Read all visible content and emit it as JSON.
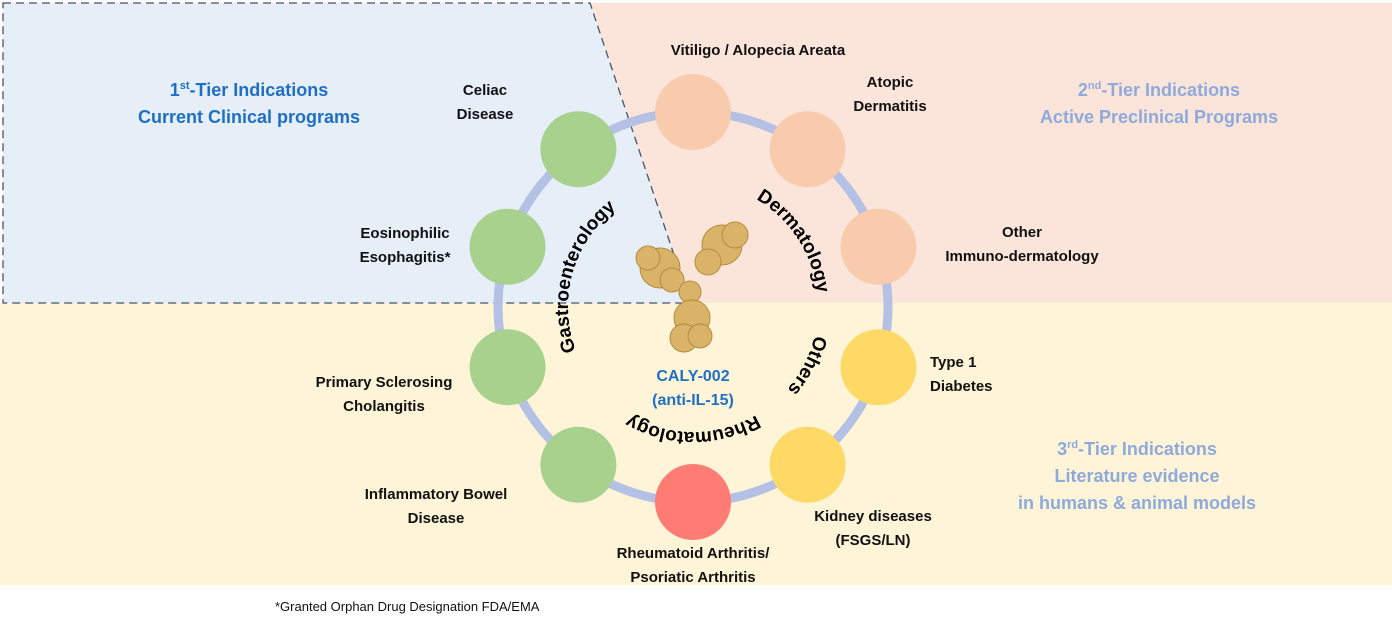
{
  "colors": {
    "tier1_bg": "#e6eef8",
    "tier2_bg": "#fbe5da",
    "tier3_bg": "#fef4d8",
    "tier1_text": "#1f6fc5",
    "tier_light_text": "#8eaadb",
    "ring": "#b4c0e4",
    "gastro": "#a9d18e",
    "derm": "#f8cbad",
    "others": "#ffd966",
    "rheum": "#ff7c75"
  },
  "tiers": {
    "tier1": {
      "num": "1",
      "sup": "st",
      "title": "-Tier Indications",
      "subtitle": "Current Clinical programs"
    },
    "tier2": {
      "num": "2",
      "sup": "nd",
      "title": "-Tier Indications",
      "subtitle": "Active Preclinical Programs"
    },
    "tier3": {
      "num": "3",
      "sup": "rd",
      "title": "-Tier Indications",
      "subtitle": "Literature evidence",
      "subtitle2": "in humans & animal models"
    }
  },
  "categories": {
    "gastro": "Gastroenterology",
    "derm": "Dermatology",
    "others": "Others",
    "rheum": "Rheumatology"
  },
  "drug": {
    "name": "CALY-002",
    "target": "(anti-IL-15)"
  },
  "indications": [
    {
      "category": "gastro",
      "lines": [
        "Celiac",
        "Disease"
      ]
    },
    {
      "category": "gastro",
      "lines": [
        "Eosinophilic",
        "Esophagitis*"
      ]
    },
    {
      "category": "gastro",
      "lines": [
        "Primary Sclerosing",
        "Cholangitis"
      ]
    },
    {
      "category": "gastro",
      "lines": [
        "Inflammatory Bowel",
        "Disease"
      ]
    },
    {
      "category": "rheum",
      "lines": [
        "Rheumatoid Arthritis/",
        "Psoriatic Arthritis"
      ]
    },
    {
      "category": "others",
      "lines": [
        "Kidney diseases",
        "(FSGS/LN)"
      ]
    },
    {
      "category": "others",
      "lines": [
        "Type 1",
        "Diabetes"
      ]
    },
    {
      "category": "derm",
      "lines": [
        "Other",
        "Immuno-dermatology"
      ]
    },
    {
      "category": "derm",
      "lines": [
        "Atopic",
        "Dermatitis"
      ]
    },
    {
      "category": "derm",
      "lines": [
        "Vitiligo / Alopecia Areata"
      ]
    }
  ],
  "footnote": "*Granted Orphan Drug Designation FDA/EMA"
}
